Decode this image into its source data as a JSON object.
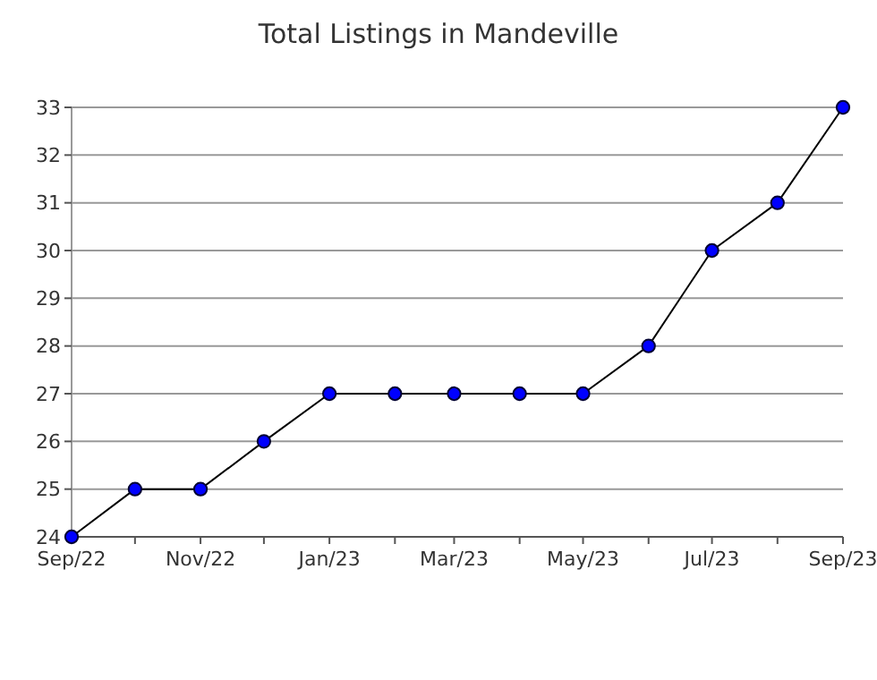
{
  "chart_data": {
    "type": "line",
    "title": "Total Listings in Mandeville",
    "x": [
      "2022-09",
      "2022-10",
      "2022-11",
      "2022-12",
      "2023-01",
      "2023-02",
      "2023-03",
      "2023-04",
      "2023-05",
      "2023-06",
      "2023-07",
      "2023-08",
      "2023-09"
    ],
    "series": [
      {
        "color": "#0000ff",
        "values": [
          24,
          25,
          25,
          26,
          27,
          27,
          27,
          27,
          27,
          28,
          30,
          31,
          33
        ]
      }
    ],
    "xlim": [
      "2022-09",
      "2023-09"
    ],
    "xticks": [
      {
        "value": "2022-09",
        "label": "Sep/22"
      },
      {
        "value": "2022-10",
        "label": null
      },
      {
        "value": "2022-11",
        "label": "Nov/22"
      },
      {
        "value": "2022-12",
        "label": null
      },
      {
        "value": "2023-01",
        "label": "Jan/23"
      },
      {
        "value": "2023-02",
        "label": null
      },
      {
        "value": "2023-03",
        "label": "Mar/23"
      },
      {
        "value": "2023-04",
        "label": null
      },
      {
        "value": "2023-05",
        "label": "May/23"
      },
      {
        "value": "2023-06",
        "label": null
      },
      {
        "value": "2023-07",
        "label": "Jul/23"
      },
      {
        "value": "2023-08",
        "label": null
      },
      {
        "value": "2023-09",
        "label": "Sep/23"
      }
    ],
    "ylim": [
      24,
      33
    ],
    "yticks": [
      24,
      25,
      26,
      27,
      28,
      29,
      30,
      31,
      32,
      33
    ],
    "grid": "y",
    "marker": "circle",
    "line_style": "solid"
  }
}
